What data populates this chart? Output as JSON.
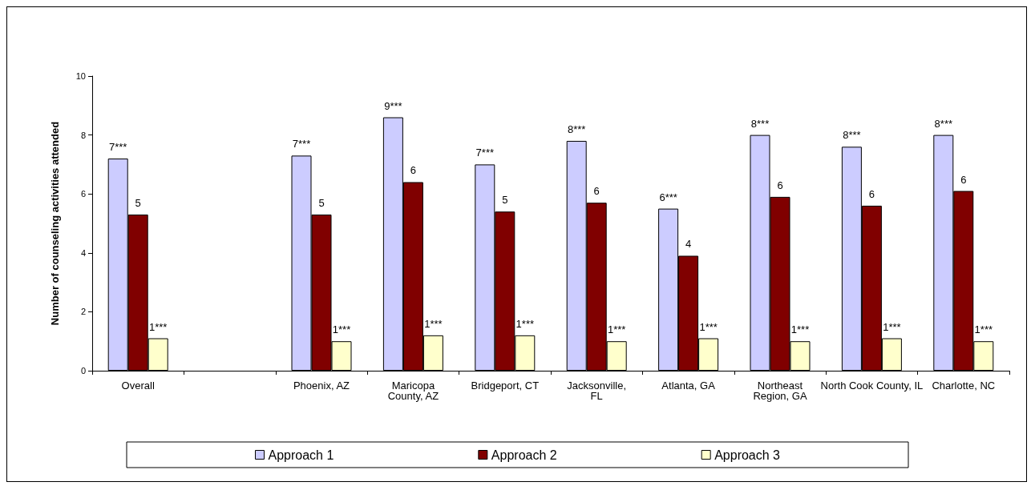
{
  "chart_data": {
    "type": "bar",
    "ylabel": "Number of counseling activities attended",
    "categories": [
      "Overall",
      null,
      "Phoenix, AZ",
      "Maricopa County, AZ",
      "Bridgeport, CT",
      "Jacksonville, FL",
      "Atlanta, GA",
      "Northeast Region, GA",
      "North Cook County, IL",
      "Charlotte, NC"
    ],
    "series": [
      {
        "name": "Approach 1",
        "color": "#ccccff",
        "values": [
          7.2,
          null,
          7.3,
          8.6,
          7.0,
          7.8,
          5.5,
          8.0,
          7.6,
          8.0
        ],
        "value_labels": [
          "7***",
          null,
          "7***",
          "9***",
          "7***",
          "8***",
          "6***",
          "8***",
          "8***",
          "8***"
        ]
      },
      {
        "name": "Approach 2",
        "color": "#800000",
        "values": [
          5.3,
          null,
          5.3,
          6.4,
          5.4,
          5.7,
          3.9,
          5.9,
          5.6,
          6.1
        ],
        "value_labels": [
          "5",
          null,
          "5",
          "6",
          "5",
          "6",
          "4",
          "6",
          "6",
          "6"
        ]
      },
      {
        "name": "Approach 3",
        "color": "#ffffcc",
        "values": [
          1.1,
          null,
          1.0,
          1.2,
          1.2,
          1.0,
          1.1,
          1.0,
          1.1,
          1.0
        ],
        "value_labels": [
          "1***",
          null,
          "1***",
          "1***",
          "1***",
          "1***",
          "1***",
          "1***",
          "1***",
          "1***"
        ]
      }
    ],
    "ylim": [
      0,
      10
    ],
    "yticks": [
      0,
      2,
      4,
      6,
      8,
      10
    ],
    "grid": false,
    "legend": "bottom"
  }
}
